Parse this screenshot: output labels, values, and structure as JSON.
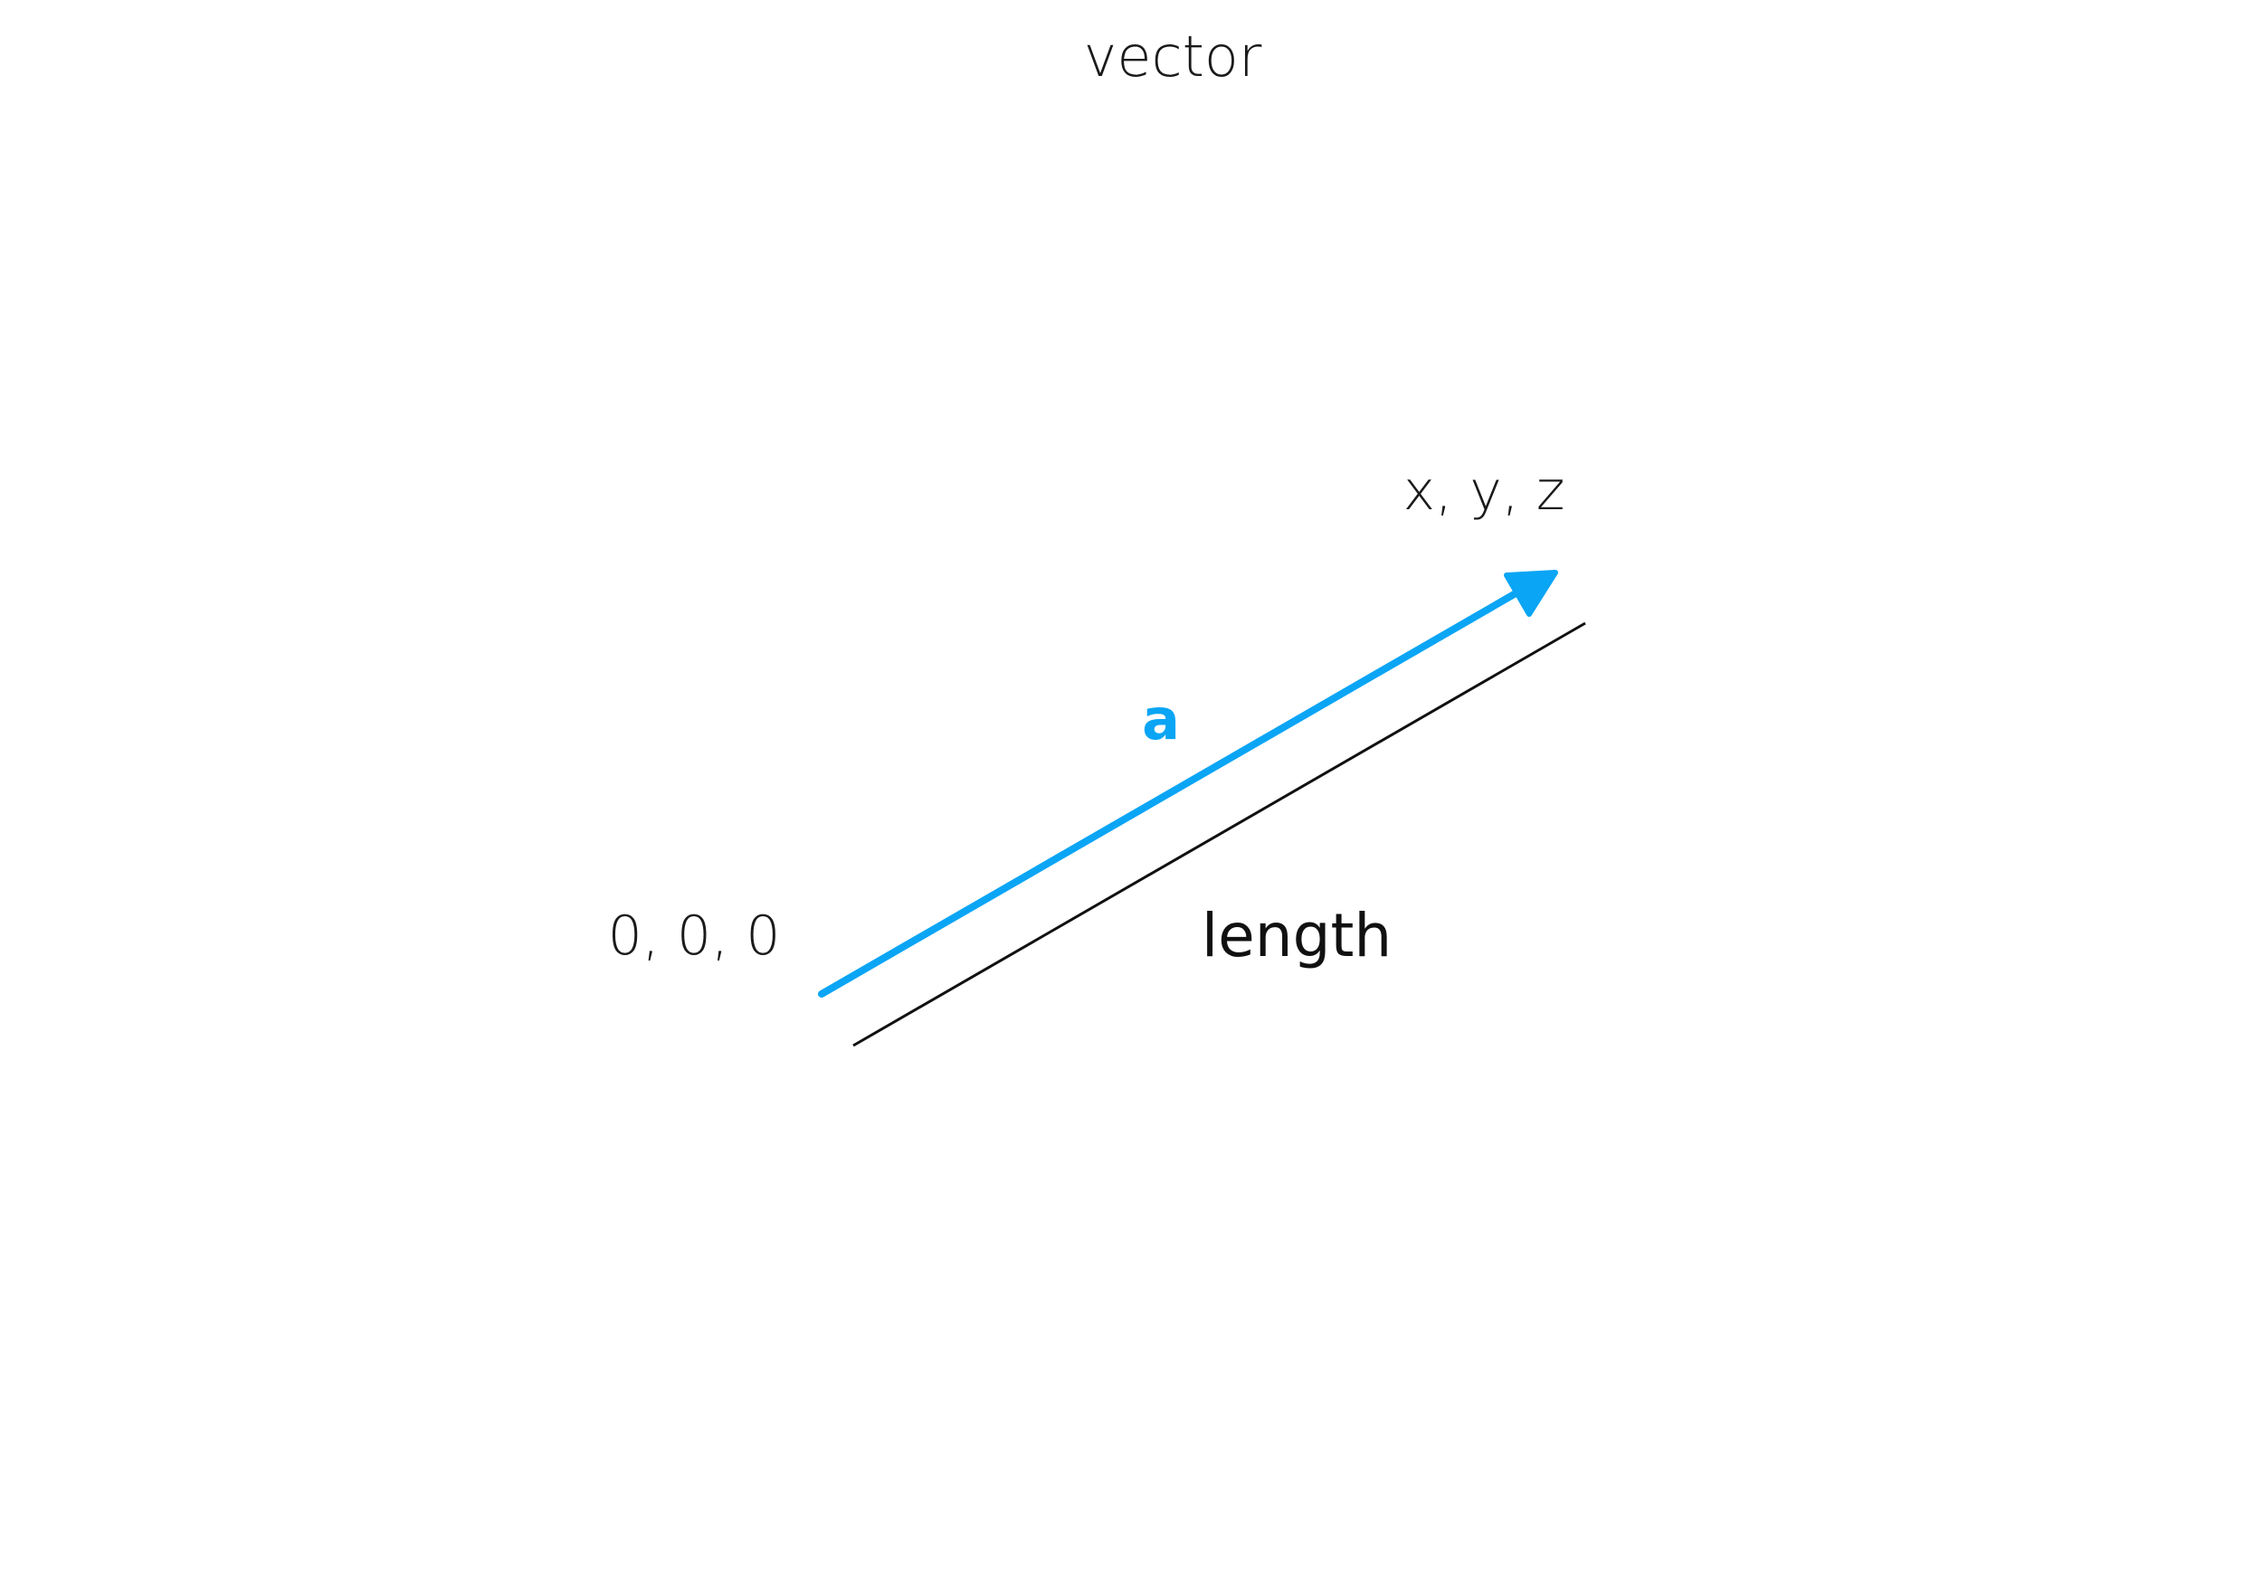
{
  "title": "vector",
  "origin_label": "0, 0, 0",
  "endpoint_label": "x, y, z",
  "vector_name": "a",
  "length_label": "length",
  "colors": {
    "vector": "#0aa5f5",
    "length_line": "#111111",
    "text": "#1a1a1a"
  }
}
